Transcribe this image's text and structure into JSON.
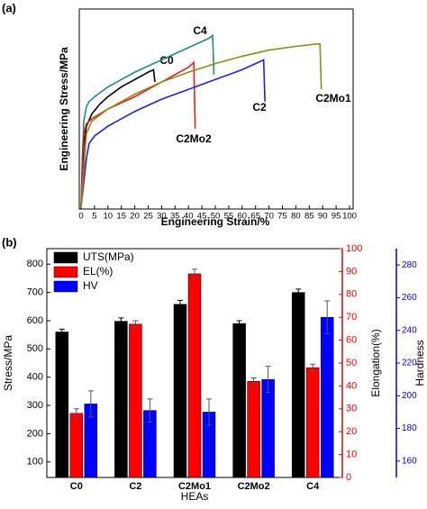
{
  "chart_data": [
    {
      "type": "line",
      "label": "(a)",
      "xlabel": "Engineering Strain/%",
      "ylabel": "Engineering Stress/MPa",
      "xlim": [
        0,
        100
      ],
      "xticks": [
        0,
        5,
        10,
        15,
        20,
        25,
        30,
        35,
        40,
        45,
        50,
        55,
        60,
        65,
        70,
        75,
        80,
        85,
        90,
        95,
        100
      ],
      "ylim": [
        0,
        800
      ],
      "series": [
        {
          "name": "C0",
          "color": "#000000",
          "x": [
            0,
            0.5,
            1,
            2,
            4,
            7,
            10,
            15,
            20,
            25,
            27,
            27.5
          ],
          "values": [
            0,
            150,
            250,
            330,
            380,
            420,
            450,
            490,
            520,
            550,
            560,
            510
          ]
        },
        {
          "name": "C4",
          "color": "#1f8a8a",
          "x": [
            0,
            0.5,
            1,
            2,
            3,
            5,
            10,
            20,
            30,
            40,
            48,
            49,
            49.5
          ],
          "values": [
            0,
            200,
            350,
            410,
            430,
            450,
            490,
            550,
            600,
            650,
            690,
            700,
            540
          ]
        },
        {
          "name": "C2Mo2",
          "color": "#e02020",
          "x": [
            0,
            0.5,
            1,
            2,
            4,
            10,
            20,
            30,
            40,
            42,
            42.5
          ],
          "values": [
            0,
            200,
            300,
            340,
            360,
            400,
            450,
            510,
            570,
            590,
            320
          ]
        },
        {
          "name": "C2",
          "color": "#2020e0",
          "x": [
            0,
            1,
            2,
            3,
            5,
            10,
            20,
            30,
            40,
            50,
            60,
            66,
            68,
            68.5
          ],
          "values": [
            0,
            100,
            200,
            260,
            290,
            330,
            390,
            440,
            480,
            520,
            560,
            590,
            600,
            430
          ]
        },
        {
          "name": "C2Mo1",
          "color": "#8b8b1a",
          "x": [
            0,
            1,
            2,
            4,
            10,
            20,
            30,
            40,
            50,
            60,
            70,
            80,
            88,
            89,
            89.5
          ],
          "values": [
            0,
            150,
            300,
            350,
            400,
            460,
            510,
            550,
            585,
            615,
            640,
            655,
            665,
            665,
            480
          ]
        }
      ]
    },
    {
      "type": "bar",
      "label": "(b)",
      "xlabel": "HEAs",
      "ylabel": "Stress/MPa",
      "y2label": "Elongation(%)",
      "y3label": "Hardness",
      "categories": [
        "C0",
        "C2",
        "C2Mo1",
        "C2Mo2",
        "C4"
      ],
      "ylim": [
        45,
        855
      ],
      "yticks": [
        100,
        200,
        300,
        400,
        500,
        600,
        700,
        800
      ],
      "y2lim": [
        0,
        100
      ],
      "y2ticks": [
        0,
        10,
        20,
        30,
        40,
        50,
        60,
        70,
        80,
        90,
        100
      ],
      "y3lim": [
        150,
        290
      ],
      "y3ticks": [
        160,
        180,
        200,
        220,
        240,
        260,
        280
      ],
      "legend": "upper left",
      "series": [
        {
          "name": "UTS(MPa)",
          "color": "#000000",
          "values": [
            560,
            598,
            658,
            590,
            700
          ],
          "errors": [
            10,
            12,
            14,
            10,
            12
          ]
        },
        {
          "name": "EL(%)",
          "color": "#ff0000",
          "axis": "y2",
          "values": [
            28,
            67,
            89,
            42,
            48
          ],
          "errors": [
            2,
            1.5,
            2,
            1.5,
            1.5
          ]
        },
        {
          "name": "HV",
          "color": "#0000ff",
          "axis": "y3",
          "values": [
            195,
            191,
            190,
            210,
            248
          ],
          "errors": [
            8,
            7,
            8,
            8,
            10
          ]
        }
      ]
    }
  ]
}
